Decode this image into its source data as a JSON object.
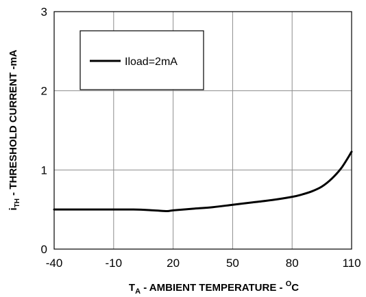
{
  "chart_data": {
    "type": "line",
    "xlabel_main": "T",
    "xlabel_sub": "A",
    "xlabel_rest": " - AMBIENT  TEMPERATURE  - ",
    "xlabel_sup": "O",
    "xlabel_end": "C",
    "ylabel_main": "i",
    "ylabel_sub": "TH",
    "ylabel_rest": " - THRESHOLD  CURRENT  -mA",
    "xlim": [
      -40,
      110
    ],
    "ylim": [
      0,
      3
    ],
    "x_ticks": [
      -40,
      -10,
      20,
      50,
      80,
      110
    ],
    "y_ticks": [
      0,
      1,
      2,
      3
    ],
    "x_tick_labels": [
      "-40",
      "-10",
      "20",
      "50",
      "80",
      "110"
    ],
    "y_tick_labels": [
      "0",
      "1",
      "2",
      "3"
    ],
    "grid": true,
    "legend_position": "top-left",
    "series": [
      {
        "name": "Iload=2mA",
        "color": "#000000",
        "x": [
          -40,
          -20,
          0,
          10,
          17,
          20,
          30,
          40,
          50,
          60,
          70,
          80,
          85,
          90,
          95,
          100,
          105,
          110
        ],
        "y": [
          0.5,
          0.5,
          0.5,
          0.49,
          0.48,
          0.49,
          0.51,
          0.53,
          0.56,
          0.59,
          0.62,
          0.66,
          0.69,
          0.73,
          0.79,
          0.89,
          1.03,
          1.23
        ]
      }
    ]
  }
}
